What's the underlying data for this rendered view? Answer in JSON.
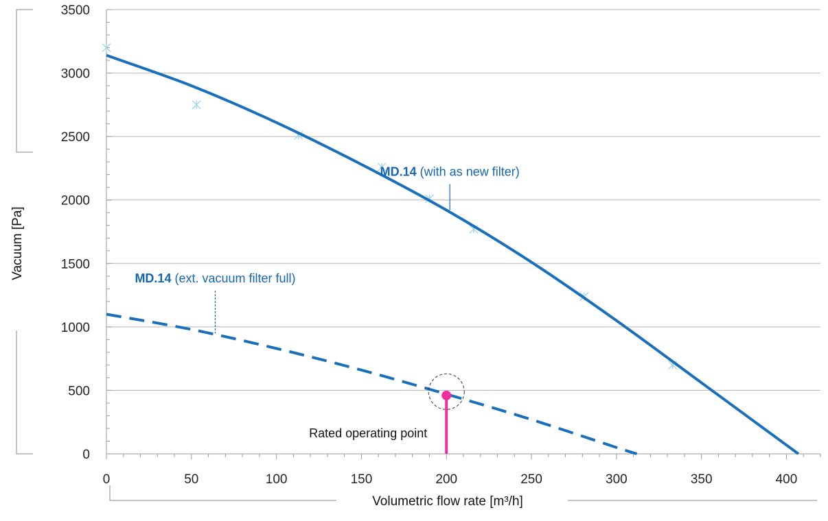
{
  "chart_data": {
    "type": "line",
    "xlabel": "Volumetric flow rate [m³/h]",
    "ylabel": "Vacuum [Pa]",
    "xlim": [
      0,
      420
    ],
    "ylim": [
      0,
      3500
    ],
    "x_ticks": [
      0,
      50,
      100,
      150,
      200,
      250,
      300,
      350,
      400
    ],
    "y_ticks": [
      0,
      500,
      1000,
      1500,
      2000,
      2500,
      3000,
      3500
    ],
    "grid": "horizontal",
    "series": [
      {
        "name": "MD.14 (with as new filter)",
        "style": "solid",
        "color": "#1a6fbb",
        "x": [
          0,
          50,
          100,
          150,
          200,
          250,
          300,
          350,
          407
        ],
        "y": [
          3140,
          2900,
          2610,
          2280,
          1920,
          1510,
          1050,
          560,
          0
        ]
      },
      {
        "name": "MD.14 (ext. vacuum filter full)",
        "style": "dashed",
        "color": "#1a6fbb",
        "x": [
          0,
          50,
          100,
          150,
          200,
          250,
          300,
          312
        ],
        "y": [
          1100,
          980,
          830,
          660,
          470,
          270,
          50,
          0
        ]
      }
    ],
    "measured_points": {
      "marker": "star",
      "color": "#9fd4e6",
      "x": [
        0,
        53,
        113,
        162,
        190,
        216,
        281,
        333
      ],
      "y": [
        3200,
        2750,
        2510,
        2260,
        2010,
        1770,
        1240,
        700
      ]
    },
    "annotations": [
      {
        "bold": "MD.14",
        "text": " (with as new filter)",
        "x": 202,
        "y": 2190,
        "leader_to": [
          202,
          1920
        ],
        "leader_style": "solid"
      },
      {
        "bold": "MD.14",
        "text": " (ext. vacuum filter full)",
        "x": 64,
        "y": 1350,
        "leader_to": [
          64,
          950
        ],
        "leader_style": "dashed"
      }
    ],
    "operating_point": {
      "label": "Rated operating point",
      "x": 200,
      "y": 460,
      "color": "#f02d9e"
    }
  }
}
